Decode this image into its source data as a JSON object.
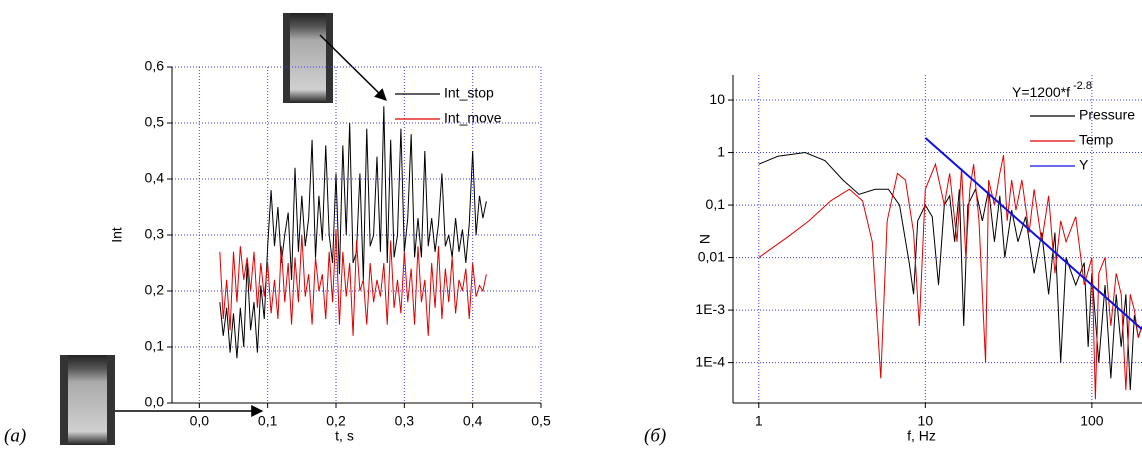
{
  "chart_data": [
    {
      "type": "line",
      "panel_label": "(a)",
      "xlabel": "t, s",
      "ylabel": "Int",
      "xlim": [
        -0.04,
        0.5
      ],
      "ylim": [
        0,
        0.6
      ],
      "xticks": [
        {
          "value": 0,
          "label": "0,0"
        },
        {
          "value": 0.1,
          "label": "0,1"
        },
        {
          "value": 0.2,
          "label": "0,2"
        },
        {
          "value": 0.3,
          "label": "0,3"
        },
        {
          "value": 0.4,
          "label": "0,4"
        },
        {
          "value": 0.5,
          "label": "0,5"
        }
      ],
      "yticks": [
        {
          "value": 0,
          "label": "0,0"
        },
        {
          "value": 0.1,
          "label": "0,1"
        },
        {
          "value": 0.2,
          "label": "0,2"
        },
        {
          "value": 0.3,
          "label": "0,3"
        },
        {
          "value": 0.4,
          "label": "0,4"
        },
        {
          "value": 0.5,
          "label": "0,5"
        },
        {
          "value": 0.6,
          "label": "0,6"
        }
      ],
      "grid": true,
      "legend": "upper right",
      "series": [
        {
          "name": "Int_stop",
          "color": "#000000",
          "x": [
            0.03,
            0.035,
            0.04,
            0.045,
            0.05,
            0.055,
            0.06,
            0.065,
            0.07,
            0.075,
            0.08,
            0.085,
            0.09,
            0.095,
            0.1,
            0.105,
            0.11,
            0.115,
            0.12,
            0.125,
            0.13,
            0.135,
            0.14,
            0.145,
            0.15,
            0.155,
            0.16,
            0.165,
            0.17,
            0.175,
            0.18,
            0.185,
            0.19,
            0.195,
            0.2,
            0.205,
            0.21,
            0.215,
            0.22,
            0.225,
            0.23,
            0.235,
            0.24,
            0.245,
            0.25,
            0.255,
            0.26,
            0.265,
            0.27,
            0.275,
            0.28,
            0.285,
            0.29,
            0.295,
            0.3,
            0.305,
            0.31,
            0.315,
            0.32,
            0.325,
            0.33,
            0.335,
            0.34,
            0.345,
            0.35,
            0.355,
            0.36,
            0.365,
            0.37,
            0.375,
            0.38,
            0.385,
            0.39,
            0.395,
            0.4,
            0.405,
            0.41,
            0.415,
            0.42
          ],
          "values": [
            0.18,
            0.12,
            0.17,
            0.09,
            0.16,
            0.08,
            0.17,
            0.1,
            0.25,
            0.13,
            0.18,
            0.09,
            0.21,
            0.15,
            0.28,
            0.38,
            0.28,
            0.35,
            0.25,
            0.3,
            0.34,
            0.22,
            0.42,
            0.27,
            0.37,
            0.28,
            0.33,
            0.47,
            0.26,
            0.37,
            0.29,
            0.46,
            0.3,
            0.25,
            0.41,
            0.23,
            0.46,
            0.3,
            0.5,
            0.25,
            0.27,
            0.41,
            0.22,
            0.49,
            0.28,
            0.3,
            0.44,
            0.27,
            0.53,
            0.25,
            0.47,
            0.26,
            0.3,
            0.49,
            0.27,
            0.33,
            0.48,
            0.26,
            0.33,
            0.26,
            0.45,
            0.28,
            0.33,
            0.27,
            0.32,
            0.41,
            0.28,
            0.3,
            0.26,
            0.33,
            0.27,
            0.31,
            0.25,
            0.32,
            0.45,
            0.3,
            0.37,
            0.33,
            0.36
          ]
        },
        {
          "name": "Int_move",
          "color": "#e00000",
          "x": [
            0.03,
            0.035,
            0.04,
            0.045,
            0.05,
            0.055,
            0.06,
            0.065,
            0.07,
            0.075,
            0.08,
            0.085,
            0.09,
            0.095,
            0.1,
            0.105,
            0.11,
            0.115,
            0.12,
            0.125,
            0.13,
            0.135,
            0.14,
            0.145,
            0.15,
            0.155,
            0.16,
            0.165,
            0.17,
            0.175,
            0.18,
            0.185,
            0.19,
            0.195,
            0.2,
            0.205,
            0.21,
            0.215,
            0.22,
            0.225,
            0.23,
            0.235,
            0.24,
            0.245,
            0.25,
            0.255,
            0.26,
            0.265,
            0.27,
            0.275,
            0.28,
            0.285,
            0.29,
            0.295,
            0.3,
            0.305,
            0.31,
            0.315,
            0.32,
            0.325,
            0.33,
            0.335,
            0.34,
            0.345,
            0.35,
            0.355,
            0.36,
            0.365,
            0.37,
            0.375,
            0.38,
            0.385,
            0.39,
            0.395,
            0.4,
            0.405,
            0.41,
            0.415,
            0.42
          ],
          "values": [
            0.27,
            0.15,
            0.22,
            0.13,
            0.27,
            0.18,
            0.28,
            0.22,
            0.26,
            0.2,
            0.27,
            0.17,
            0.25,
            0.19,
            0.25,
            0.16,
            0.22,
            0.15,
            0.28,
            0.18,
            0.25,
            0.14,
            0.26,
            0.18,
            0.3,
            0.19,
            0.23,
            0.14,
            0.26,
            0.2,
            0.23,
            0.15,
            0.27,
            0.18,
            0.31,
            0.14,
            0.27,
            0.19,
            0.25,
            0.12,
            0.29,
            0.2,
            0.22,
            0.14,
            0.25,
            0.18,
            0.22,
            0.19,
            0.25,
            0.14,
            0.29,
            0.17,
            0.22,
            0.16,
            0.27,
            0.18,
            0.24,
            0.14,
            0.28,
            0.18,
            0.22,
            0.12,
            0.25,
            0.17,
            0.28,
            0.15,
            0.24,
            0.18,
            0.26,
            0.16,
            0.22,
            0.2,
            0.24,
            0.15,
            0.25,
            0.19,
            0.21,
            0.2,
            0.23
          ]
        }
      ]
    },
    {
      "type": "line",
      "panel_label": "(б)",
      "xlabel": "f, Hz",
      "ylabel": "N",
      "annotation": {
        "text": "Y=1200*f",
        "superscript": "-2.8"
      },
      "xscale": "log",
      "yscale": "log",
      "xlim": [
        0.7,
        200
      ],
      "ylim": [
        1.7e-05,
        30
      ],
      "xticks": [
        1,
        10,
        100
      ],
      "yticks": [
        10,
        1,
        {
          "value": 0.1,
          "label": "0,1"
        },
        {
          "value": 0.01,
          "label": "0,01"
        },
        {
          "value": 0.001,
          "label": "1E-3"
        },
        {
          "value": 0.0001,
          "label": "1E-4"
        }
      ],
      "grid": true,
      "legend": "upper right",
      "series": [
        {
          "name": "Pressure",
          "color": "#000000",
          "x": [
            1,
            1.3,
            1.9,
            2.5,
            3.2,
            4,
            5,
            6,
            7,
            8,
            8.5,
            9,
            10,
            11,
            12,
            13,
            14,
            15,
            16,
            17,
            18,
            20,
            22,
            24,
            26,
            28,
            30,
            33,
            36,
            40,
            45,
            50,
            55,
            60,
            65,
            70,
            80,
            90,
            95,
            100,
            110,
            120,
            130,
            140,
            150,
            160,
            170,
            180,
            190,
            200
          ],
          "values": [
            0.6,
            0.85,
            1,
            0.7,
            0.3,
            0.16,
            0.2,
            0.2,
            0.1,
            0.008,
            0.002,
            0.05,
            0.1,
            0.06,
            0.003,
            0.1,
            0.15,
            0.02,
            0.2,
            0.0005,
            0.1,
            0.2,
            0.05,
            0.2,
            0.02,
            0.15,
            0.01,
            0.08,
            0.02,
            0.06,
            0.005,
            0.03,
            0.002,
            0.03,
            0.0001,
            0.01,
            0.003,
            0.008,
            0.0002,
            0.005,
            0.0001,
            0.003,
            5e-05,
            0.002,
            0.0002,
            0.002,
            3e-05,
            0.0008,
            0.0003,
            0.0005
          ]
        },
        {
          "name": "Temp",
          "color": "#e00000",
          "x": [
            1,
            1.5,
            2,
            2.7,
            3.5,
            4.2,
            4.8,
            5.4,
            5.9,
            6.8,
            7.6,
            8.5,
            9.2,
            10,
            11.5,
            13,
            14,
            15.5,
            16.5,
            17.5,
            18.5,
            19.5,
            21,
            23,
            24,
            26,
            28,
            29.5,
            31,
            33,
            35,
            38,
            42,
            45,
            50,
            55,
            60,
            65,
            70,
            80,
            90,
            100,
            105,
            110,
            120,
            130,
            140,
            150,
            160,
            170,
            180,
            190,
            200
          ],
          "values": [
            0.01,
            0.025,
            0.05,
            0.12,
            0.2,
            0.12,
            0.02,
            5e-05,
            0.05,
            0.4,
            0.3,
            0.03,
            0.0005,
            0.2,
            0.6,
            0.1,
            0.4,
            0.02,
            0.5,
            0.01,
            0.2,
            0.6,
            0.05,
            0.0001,
            0.3,
            0.1,
            0.4,
            0.9,
            0.05,
            0.3,
            0.08,
            0.3,
            0.03,
            0.2,
            0.02,
            0.15,
            0.005,
            0.05,
            0.02,
            0.06,
            0.003,
            0.01,
            2e-05,
            0.005,
            0.01,
            0.0005,
            0.005,
            0.002,
            3e-05,
            0.002,
            0.001,
            0.0003,
            0.0005
          ]
        },
        {
          "name": "Y",
          "color": "#1010e0",
          "x": [
            10,
            20,
            50,
            100,
            200
          ],
          "values": [
            1.9,
            0.273,
            0.021,
            0.003,
            0.00043
          ]
        }
      ]
    }
  ]
}
